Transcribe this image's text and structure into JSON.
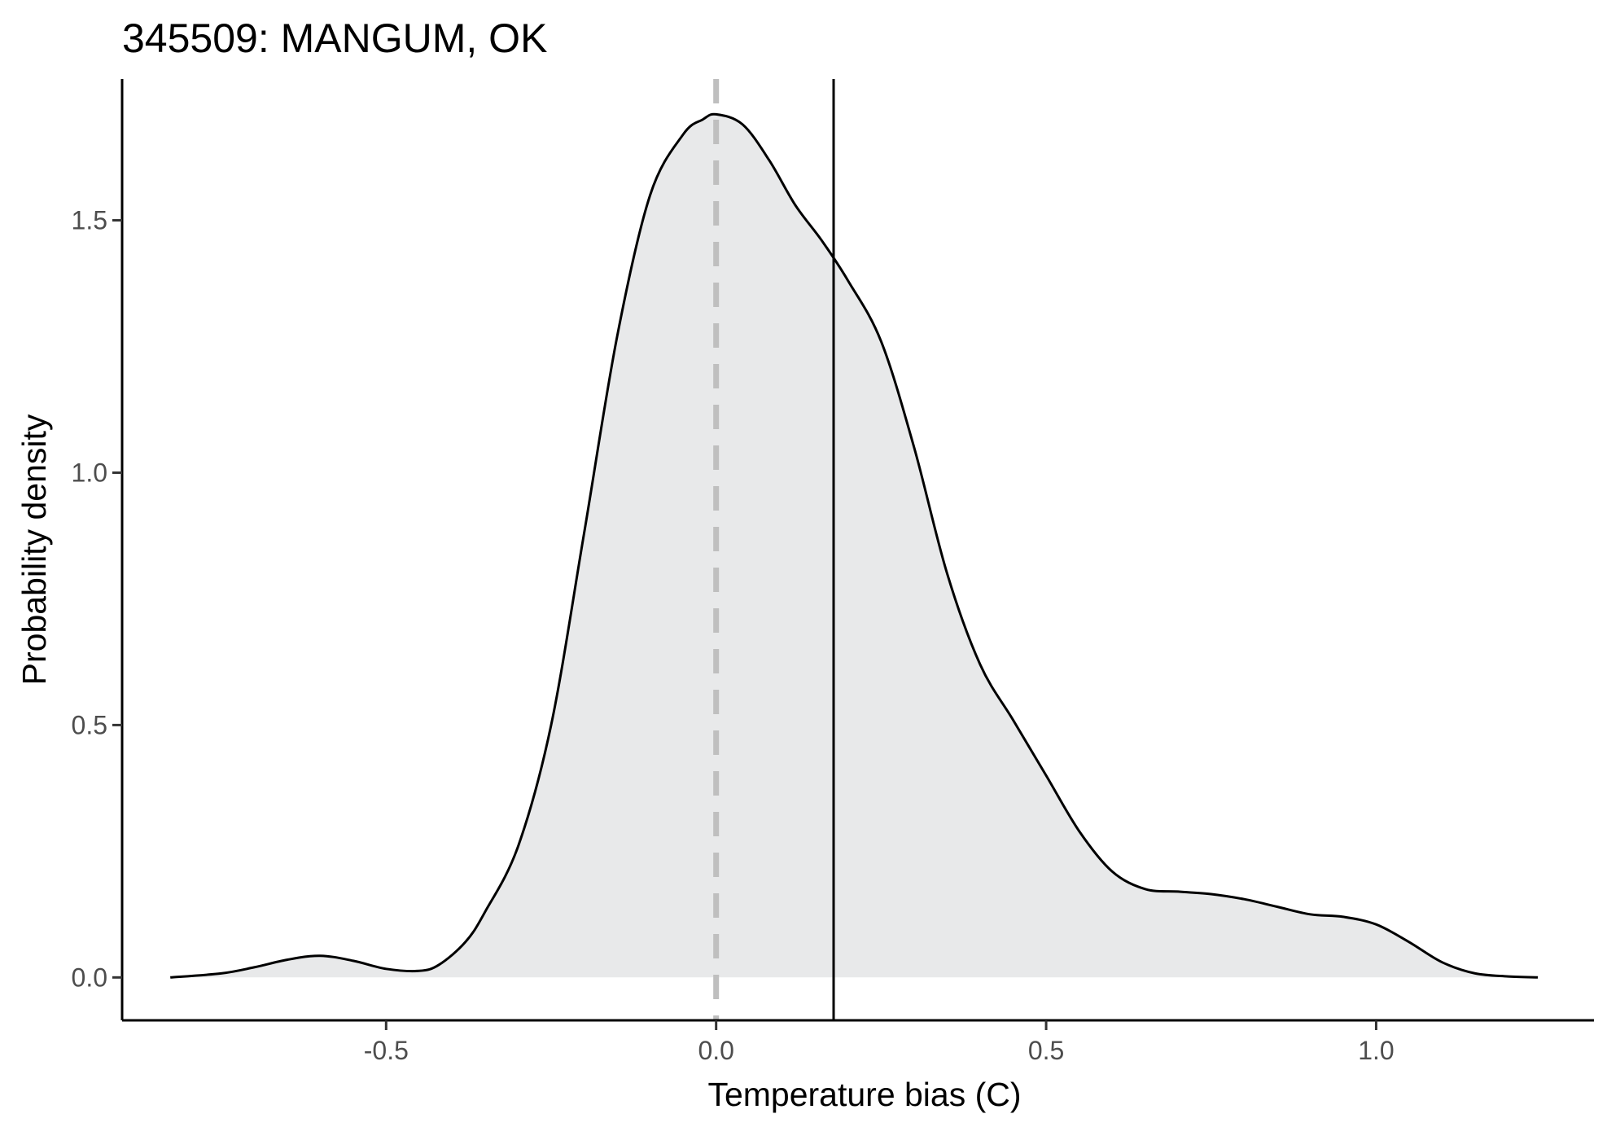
{
  "chart_data": {
    "type": "area",
    "title": "345509: MANGUM, OK",
    "xlabel": "Temperature bias (C)",
    "ylabel": "Probability density",
    "xlim": [
      -0.9,
      1.33
    ],
    "ylim": [
      -0.085,
      1.78
    ],
    "x_ticks": [
      -0.5,
      0.0,
      0.5,
      1.0
    ],
    "x_tick_labels": [
      "-0.5",
      "0.0",
      "0.5",
      "1.0"
    ],
    "y_ticks": [
      0.0,
      0.5,
      1.0,
      1.5
    ],
    "y_tick_labels": [
      "0.0",
      "0.5",
      "1.0",
      "1.5"
    ],
    "grid": false,
    "legend": "none",
    "series": [
      {
        "x": [
          -0.827,
          -0.75,
          -0.7,
          -0.65,
          -0.6,
          -0.55,
          -0.5,
          -0.45,
          -0.42,
          -0.38,
          -0.35,
          -0.3,
          -0.25,
          -0.2,
          -0.15,
          -0.1,
          -0.05,
          -0.02,
          0.0,
          0.04,
          0.08,
          0.12,
          0.16,
          0.2,
          0.25,
          0.3,
          0.35,
          0.4,
          0.45,
          0.5,
          0.55,
          0.6,
          0.65,
          0.7,
          0.75,
          0.8,
          0.85,
          0.9,
          0.95,
          1.0,
          1.05,
          1.1,
          1.15,
          1.2,
          1.245
        ],
        "y": [
          0.0,
          0.008,
          0.02,
          0.035,
          0.043,
          0.033,
          0.017,
          0.013,
          0.025,
          0.07,
          0.13,
          0.26,
          0.5,
          0.88,
          1.27,
          1.55,
          1.67,
          1.7,
          1.71,
          1.69,
          1.62,
          1.53,
          1.46,
          1.38,
          1.26,
          1.05,
          0.8,
          0.62,
          0.51,
          0.4,
          0.29,
          0.21,
          0.175,
          0.17,
          0.165,
          0.155,
          0.14,
          0.125,
          0.12,
          0.105,
          0.07,
          0.03,
          0.008,
          0.002,
          0.0
        ],
        "fill": "#e8e9ea",
        "line_color": "#000000"
      }
    ],
    "reference_lines": [
      {
        "orientation": "vertical",
        "x": 0.0,
        "style": "dashed",
        "color": "#bfbfbf"
      },
      {
        "orientation": "vertical",
        "x": 0.178,
        "style": "solid",
        "color": "#000000"
      }
    ]
  }
}
